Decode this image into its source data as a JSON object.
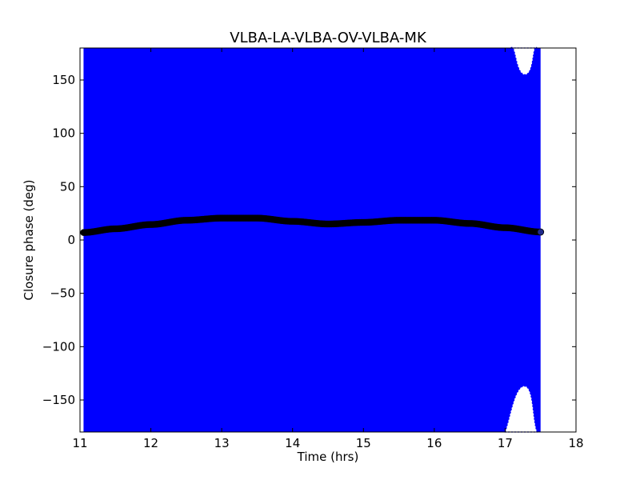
{
  "chart_data": {
    "type": "scatter",
    "title": "VLBA-LA-VLBA-OV-VLBA-MK",
    "xlabel": "Time (hrs)",
    "ylabel": "Closure phase (deg)",
    "xlim": [
      11,
      18
    ],
    "ylim": [
      -180,
      180
    ],
    "xticks": [
      11,
      12,
      13,
      14,
      15,
      16,
      17,
      18
    ],
    "xtick_labels": [
      "11",
      "12",
      "13",
      "14",
      "15",
      "16",
      "17",
      "18"
    ],
    "yticks": [
      150,
      100,
      50,
      0,
      -50,
      -100,
      -150
    ],
    "ytick_labels": [
      "150",
      "100",
      "50",
      "0",
      "−50",
      "−100",
      "−150"
    ],
    "grid": false,
    "legend": "none",
    "series": [
      {
        "role": "model",
        "marker": "circle",
        "color": "#000000",
        "x": [
          11.05,
          11.5,
          12.0,
          12.5,
          13.0,
          13.5,
          14.0,
          14.5,
          15.0,
          15.5,
          16.0,
          16.5,
          17.0,
          17.5
        ],
        "y": [
          7,
          10.5,
          14.5,
          18.5,
          20.5,
          20.5,
          17.5,
          15,
          16.5,
          18.5,
          18.5,
          15.5,
          11.5,
          7.5
        ]
      },
      {
        "role": "data-with-errorbars",
        "marker": "x",
        "color": "#0000ff",
        "x_range": [
          11.05,
          17.5
        ],
        "y_extent": "errorbars span the full axis range except near 17.0-17.5 hrs",
        "gap_top": {
          "x": [
            17.08,
            17.28,
            17.45
          ],
          "y_min": 155
        },
        "gap_bottom": {
          "x": [
            17.0,
            17.27,
            17.45
          ],
          "y_max": -137
        }
      }
    ]
  }
}
